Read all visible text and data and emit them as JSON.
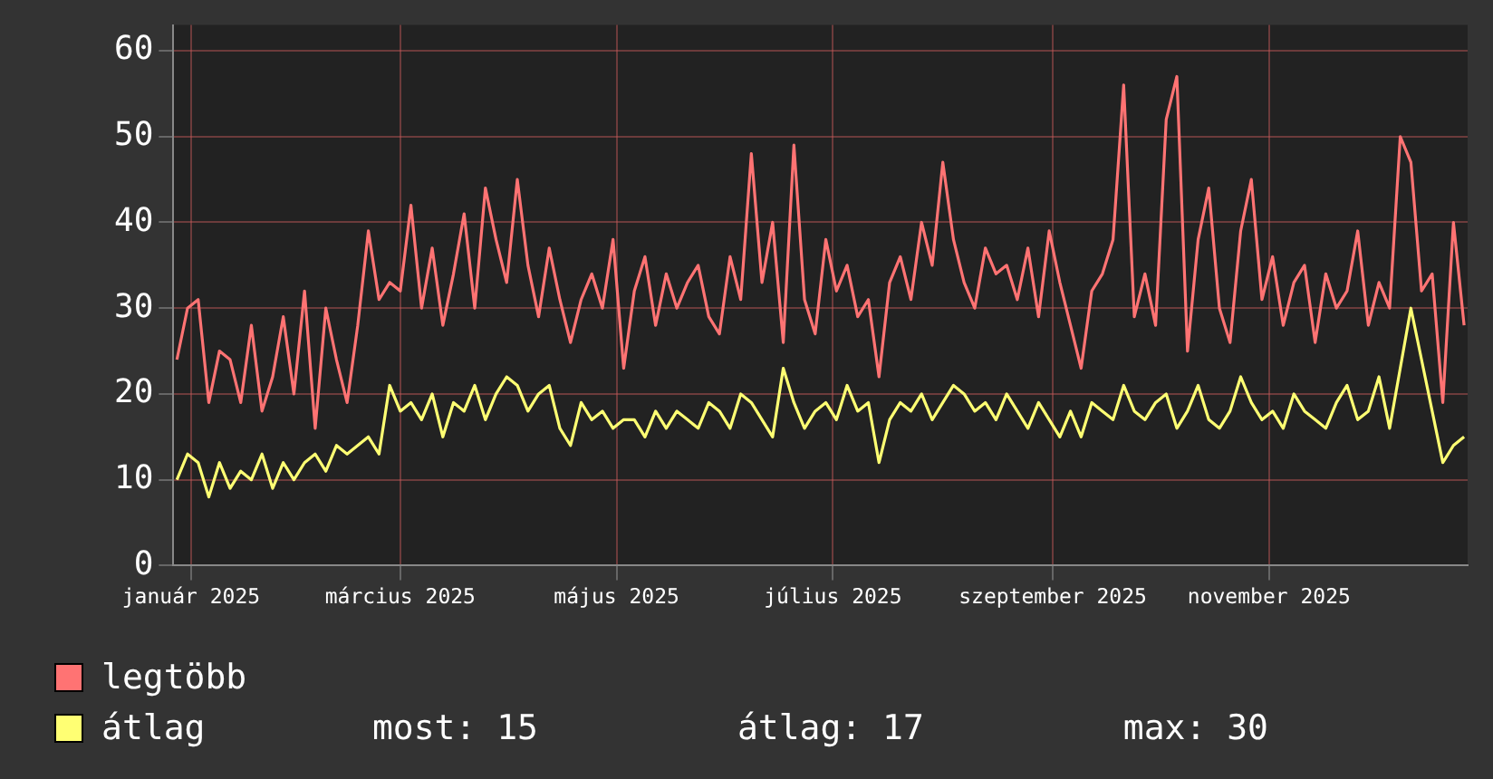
{
  "chart_data": {
    "type": "line",
    "x": [
      "2025-01-12",
      "2025-01-15",
      "2025-01-18",
      "2025-01-21",
      "2025-01-24",
      "2025-01-27",
      "2025-01-30",
      "2025-02-02",
      "2025-02-05",
      "2025-02-08",
      "2025-02-11",
      "2025-02-14",
      "2025-02-17",
      "2025-02-20",
      "2025-02-23",
      "2025-02-26",
      "2025-03-01",
      "2025-03-04",
      "2025-03-07",
      "2025-03-10",
      "2025-03-13",
      "2025-03-16",
      "2025-03-19",
      "2025-03-22",
      "2025-03-25",
      "2025-03-28",
      "2025-03-31",
      "2025-04-03",
      "2025-04-06",
      "2025-04-09",
      "2025-04-12",
      "2025-04-15",
      "2025-04-18",
      "2025-04-21",
      "2025-04-24",
      "2025-04-27",
      "2025-04-30",
      "2025-05-03",
      "2025-05-06",
      "2025-05-09",
      "2025-05-12",
      "2025-05-15",
      "2025-05-18",
      "2025-05-21",
      "2025-05-24",
      "2025-05-27",
      "2025-05-30",
      "2025-06-02",
      "2025-06-05",
      "2025-06-08",
      "2025-06-11",
      "2025-06-14",
      "2025-06-17",
      "2025-06-20",
      "2025-06-23",
      "2025-06-26",
      "2025-06-29",
      "2025-07-02",
      "2025-07-05",
      "2025-07-08",
      "2025-07-11",
      "2025-07-14",
      "2025-07-17",
      "2025-07-20",
      "2025-07-23",
      "2025-07-26",
      "2025-07-29",
      "2025-08-01",
      "2025-08-04",
      "2025-08-07",
      "2025-08-10",
      "2025-08-13",
      "2025-08-16",
      "2025-08-19",
      "2025-08-22",
      "2025-08-25",
      "2025-08-28",
      "2025-08-31",
      "2025-09-03",
      "2025-09-06",
      "2025-09-09",
      "2025-09-12",
      "2025-09-15",
      "2025-09-18",
      "2025-09-21",
      "2025-09-24",
      "2025-09-27",
      "2025-09-30",
      "2025-10-03",
      "2025-10-06",
      "2025-10-09",
      "2025-10-12",
      "2025-10-15",
      "2025-10-18",
      "2025-10-21",
      "2025-10-24",
      "2025-10-27",
      "2025-10-30",
      "2025-11-02",
      "2025-11-05",
      "2025-11-08",
      "2025-11-11",
      "2025-11-14",
      "2025-11-17",
      "2025-11-20",
      "2025-11-23",
      "2025-11-26",
      "2025-11-29",
      "2025-12-02",
      "2025-12-05",
      "2025-12-08",
      "2025-12-11",
      "2025-12-14",
      "2025-12-17",
      "2025-12-20",
      "2025-12-23",
      "2025-12-26",
      "2025-12-29",
      "2026-01-01",
      "2026-01-04",
      "2026-01-07",
      "2026-01-10"
    ],
    "series": [
      {
        "name": "legtöbb",
        "color": "#ff7373",
        "values": [
          24,
          30,
          31,
          19,
          25,
          24,
          19,
          28,
          18,
          22,
          29,
          20,
          32,
          16,
          30,
          24,
          19,
          28,
          39,
          31,
          33,
          32,
          42,
          30,
          37,
          28,
          34,
          41,
          30,
          44,
          38,
          33,
          45,
          35,
          29,
          37,
          31,
          26,
          31,
          34,
          30,
          38,
          23,
          32,
          36,
          28,
          34,
          30,
          33,
          35,
          29,
          27,
          36,
          31,
          48,
          33,
          40,
          26,
          49,
          31,
          27,
          38,
          32,
          35,
          29,
          31,
          22,
          33,
          36,
          31,
          40,
          35,
          47,
          38,
          33,
          30,
          37,
          34,
          35,
          31,
          37,
          29,
          39,
          33,
          28,
          23,
          32,
          34,
          38,
          56,
          29,
          34,
          28,
          52,
          57,
          25,
          38,
          44,
          30,
          26,
          39,
          45,
          31,
          36,
          28,
          33,
          35,
          26,
          34,
          30,
          32,
          39,
          28,
          33,
          30,
          50,
          47,
          32,
          34,
          19,
          40,
          28
        ]
      },
      {
        "name": "átlag",
        "color": "#ffff73",
        "values": [
          10,
          13,
          12,
          8,
          12,
          9,
          11,
          10,
          13,
          9,
          12,
          10,
          12,
          13,
          11,
          14,
          13,
          14,
          15,
          13,
          21,
          18,
          19,
          17,
          20,
          15,
          19,
          18,
          21,
          17,
          20,
          22,
          21,
          18,
          20,
          21,
          16,
          14,
          19,
          17,
          18,
          16,
          17,
          17,
          15,
          18,
          16,
          18,
          17,
          16,
          19,
          18,
          16,
          20,
          19,
          17,
          15,
          23,
          19,
          16,
          18,
          19,
          17,
          21,
          18,
          19,
          12,
          17,
          19,
          18,
          20,
          17,
          19,
          21,
          20,
          18,
          19,
          17,
          20,
          18,
          16,
          19,
          17,
          15,
          18,
          15,
          19,
          18,
          17,
          21,
          18,
          17,
          19,
          20,
          16,
          18,
          21,
          17,
          16,
          18,
          22,
          19,
          17,
          18,
          16,
          20,
          18,
          17,
          16,
          19,
          21,
          17,
          18,
          22,
          16,
          23,
          30,
          24,
          18,
          12,
          14,
          15
        ]
      }
    ],
    "xlim": [
      "2025-01-11",
      "2026-01-11"
    ],
    "xticks": [
      {
        "value": "2025-01-16",
        "label": "január 2025"
      },
      {
        "value": "2025-03-16",
        "label": "március 2025"
      },
      {
        "value": "2025-05-16",
        "label": "május 2025"
      },
      {
        "value": "2025-07-16",
        "label": "július 2025"
      },
      {
        "value": "2025-09-16",
        "label": "szeptember 2025"
      },
      {
        "value": "2025-11-16",
        "label": "november 2025"
      }
    ],
    "ylim": [
      0,
      63
    ],
    "yticks": [
      0,
      10,
      20,
      30,
      40,
      50,
      60
    ],
    "grid": true,
    "legend": "bottom left",
    "marker": "none",
    "line_style": "solid",
    "annotations": [
      "most: 15",
      "átlag: 17",
      "max: 30"
    ]
  }
}
